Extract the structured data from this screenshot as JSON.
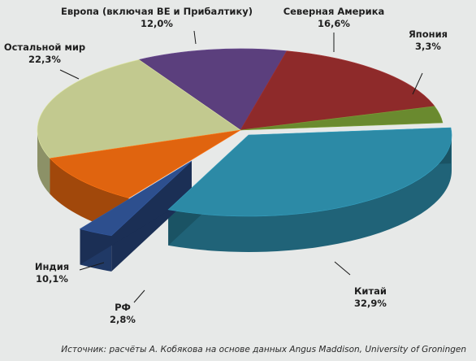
{
  "chart_data": {
    "type": "pie",
    "title": "",
    "slices": [
      {
        "label": "Европа (включая ВЕ и Прибалтику)",
        "value": 12.0,
        "display": "12,0%",
        "color": "#5b3f7d"
      },
      {
        "label": "Северная Америка",
        "value": 16.6,
        "display": "16,6%",
        "color": "#8e2a2a"
      },
      {
        "label": "Япония",
        "value": 3.3,
        "display": "3,3%",
        "color": "#6a8a2f"
      },
      {
        "label": "Китай",
        "value": 32.9,
        "display": "32,9%",
        "color": "#2c8aa6"
      },
      {
        "label": "РФ",
        "value": 2.8,
        "display": "2,8%",
        "color": "#2d4f8e"
      },
      {
        "label": "Индия",
        "value": 10.1,
        "display": "10,1%",
        "color": "#e0640f"
      },
      {
        "label": "Остальной мир",
        "value": 22.3,
        "display": "22,3%",
        "color": "#c2c98f"
      }
    ],
    "start_angle_deg": -120,
    "exploded": [
      "Китай",
      "РФ"
    ],
    "style": "3d"
  },
  "source": "Источник: расчёты А. Кобякова на основе данных Angus Maddison, University of Groningen"
}
